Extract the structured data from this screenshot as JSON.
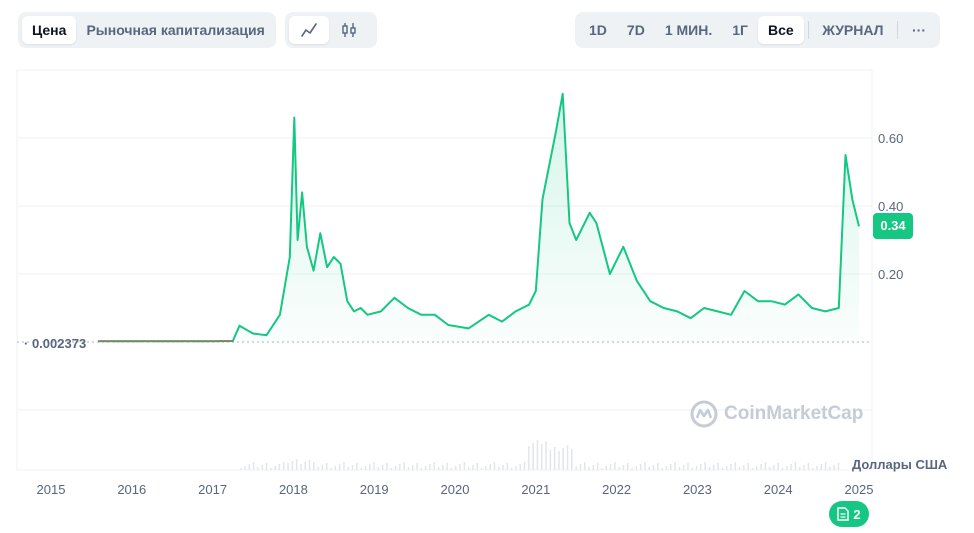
{
  "toolbar": {
    "metric_tabs": [
      "Цена",
      "Рыночная капитализация"
    ],
    "active_metric": "Цена",
    "chart_types": [
      "line-chart-icon",
      "candlestick-icon"
    ],
    "active_chart_type": "line-chart-icon",
    "ranges": [
      "1D",
      "7D",
      "1 МИН.",
      "1Г",
      "Все"
    ],
    "active_range": "Все",
    "log_label": "ЖУРНАЛ",
    "more_label": "···"
  },
  "labels": {
    "currency": "Доллары США",
    "start_price": "0.002373",
    "current_price": "0.34",
    "watermark": "CoinMarketCap",
    "events_count": "2"
  },
  "colors": {
    "line": "#16c784",
    "start_line": "#ea3943",
    "badge": "#16c784",
    "grid": "#eff2f5"
  },
  "chart_data": {
    "type": "line",
    "title": "",
    "xlabel": "",
    "ylabel": "Доллары США",
    "x_ticks": [
      "2015",
      "2016",
      "2017",
      "2018",
      "2019",
      "2020",
      "2021",
      "2022",
      "2023",
      "2024",
      "2025"
    ],
    "y_ticks": [
      0.2,
      0.4,
      0.6
    ],
    "ylim": [
      0,
      0.75
    ],
    "xlim": [
      "2015-07",
      "2025-02"
    ],
    "start_value": 0.002373,
    "last_value": 0.34,
    "series": [
      {
        "x": [
          "2015-08",
          "2016-01",
          "2016-06",
          "2017-01",
          "2017-04",
          "2017-05",
          "2017-07",
          "2017-09",
          "2017-11",
          "2017-12-15",
          "2018-01-05",
          "2018-01-20",
          "2018-02-10",
          "2018-03",
          "2018-04",
          "2018-05",
          "2018-06",
          "2018-07",
          "2018-08",
          "2018-09",
          "2018-10",
          "2018-11",
          "2018-12",
          "2019-02",
          "2019-04",
          "2019-06",
          "2019-08",
          "2019-10",
          "2019-12",
          "2020-03",
          "2020-06",
          "2020-08",
          "2020-10",
          "2020-12",
          "2021-01",
          "2021-02",
          "2021-04",
          "2021-05",
          "2021-06",
          "2021-07",
          "2021-09",
          "2021-10",
          "2021-12",
          "2022-02",
          "2022-04",
          "2022-06",
          "2022-08",
          "2022-10",
          "2022-12",
          "2023-02",
          "2023-04",
          "2023-06",
          "2023-08",
          "2023-10",
          "2023-12",
          "2024-02",
          "2024-04",
          "2024-06",
          "2024-08",
          "2024-10",
          "2024-11",
          "2024-12",
          "2025-01"
        ],
        "y": [
          0.002373,
          0.002,
          0.002,
          0.002,
          0.003,
          0.048,
          0.025,
          0.02,
          0.08,
          0.25,
          0.66,
          0.3,
          0.44,
          0.28,
          0.21,
          0.32,
          0.22,
          0.25,
          0.23,
          0.12,
          0.09,
          0.1,
          0.08,
          0.09,
          0.13,
          0.1,
          0.08,
          0.08,
          0.05,
          0.04,
          0.08,
          0.06,
          0.09,
          0.11,
          0.15,
          0.42,
          0.62,
          0.73,
          0.35,
          0.3,
          0.38,
          0.35,
          0.2,
          0.28,
          0.18,
          0.12,
          0.1,
          0.09,
          0.07,
          0.1,
          0.09,
          0.08,
          0.15,
          0.12,
          0.12,
          0.11,
          0.14,
          0.1,
          0.09,
          0.1,
          0.55,
          0.42,
          0.34
        ]
      }
    ]
  }
}
